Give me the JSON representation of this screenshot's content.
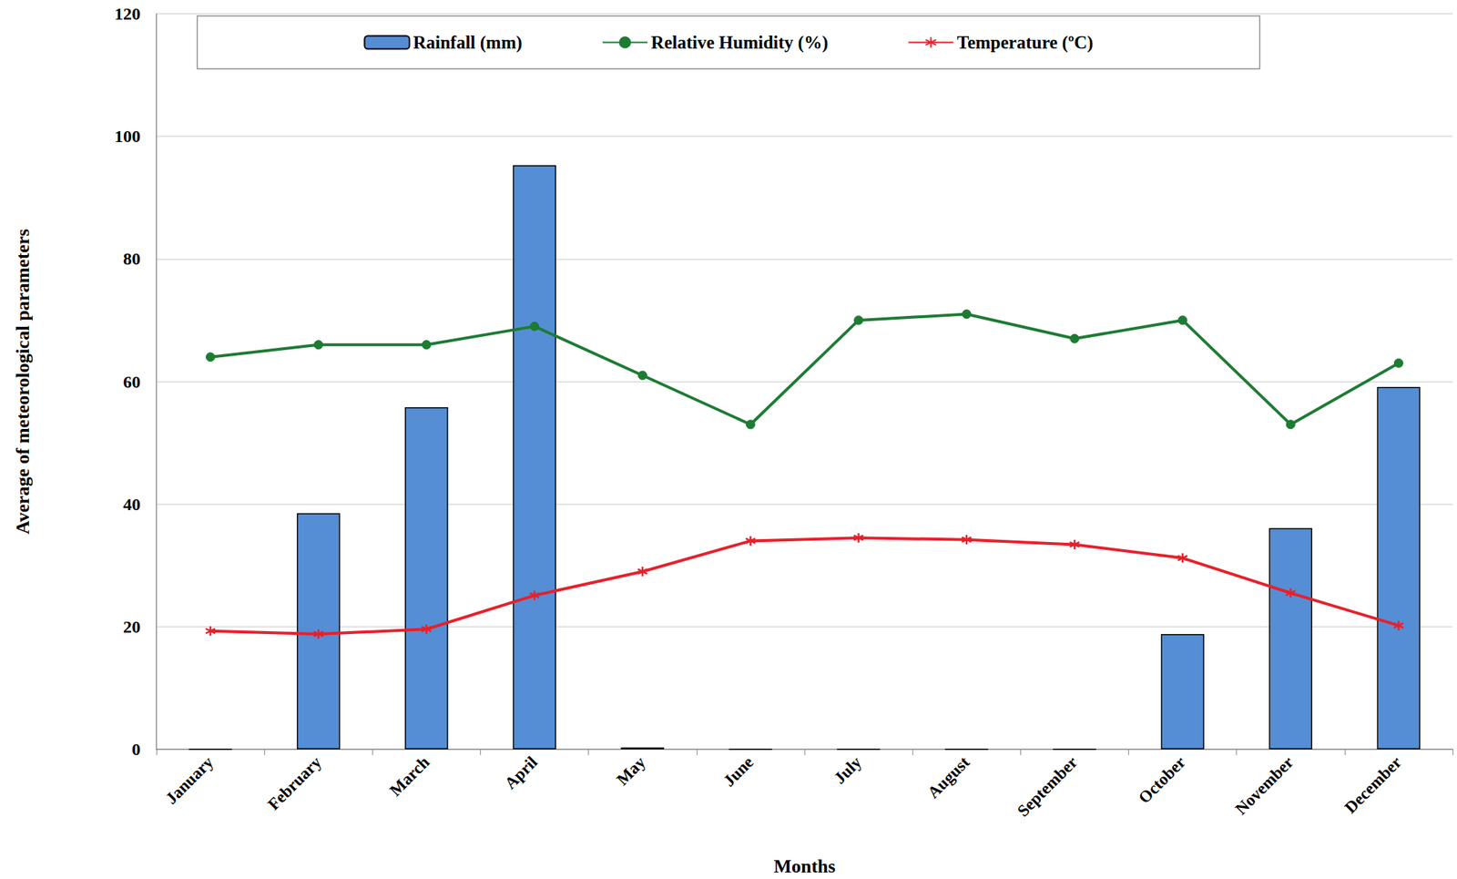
{
  "chart_data": {
    "type": "bar",
    "x_label": "Months",
    "y_label": "Average of meteorological parameters",
    "categories": [
      "January",
      "February",
      "March",
      "April",
      "May",
      "June",
      "July",
      "August",
      "September",
      "October",
      "November",
      "December"
    ],
    "series": [
      {
        "name": "Rainfall (mm)",
        "type": "bar",
        "color": "#558ed5",
        "values": [
          0,
          38.5,
          55.8,
          95.3,
          0.3,
          0,
          0,
          0,
          0,
          18.8,
          36.1,
          59.1
        ]
      },
      {
        "name": "Relative Humidity (%)",
        "type": "line",
        "color": "#1e7b34",
        "marker": "circle",
        "line_style": "solid",
        "values": [
          64,
          66,
          66,
          69,
          61,
          53,
          70,
          71,
          67,
          70,
          53,
          63
        ]
      },
      {
        "name": "Temperature (ºC)",
        "type": "line",
        "color": "#e8202a",
        "marker": "asterisk",
        "line_style": "solid",
        "values": [
          19.3,
          18.8,
          19.6,
          25.1,
          29.0,
          34.0,
          34.5,
          34.2,
          33.4,
          31.2,
          25.5,
          20.2
        ]
      }
    ],
    "ylim": [
      0,
      120
    ],
    "yticks": [
      0,
      20,
      40,
      60,
      80,
      100,
      120
    ],
    "grid": true,
    "legend": "top"
  }
}
